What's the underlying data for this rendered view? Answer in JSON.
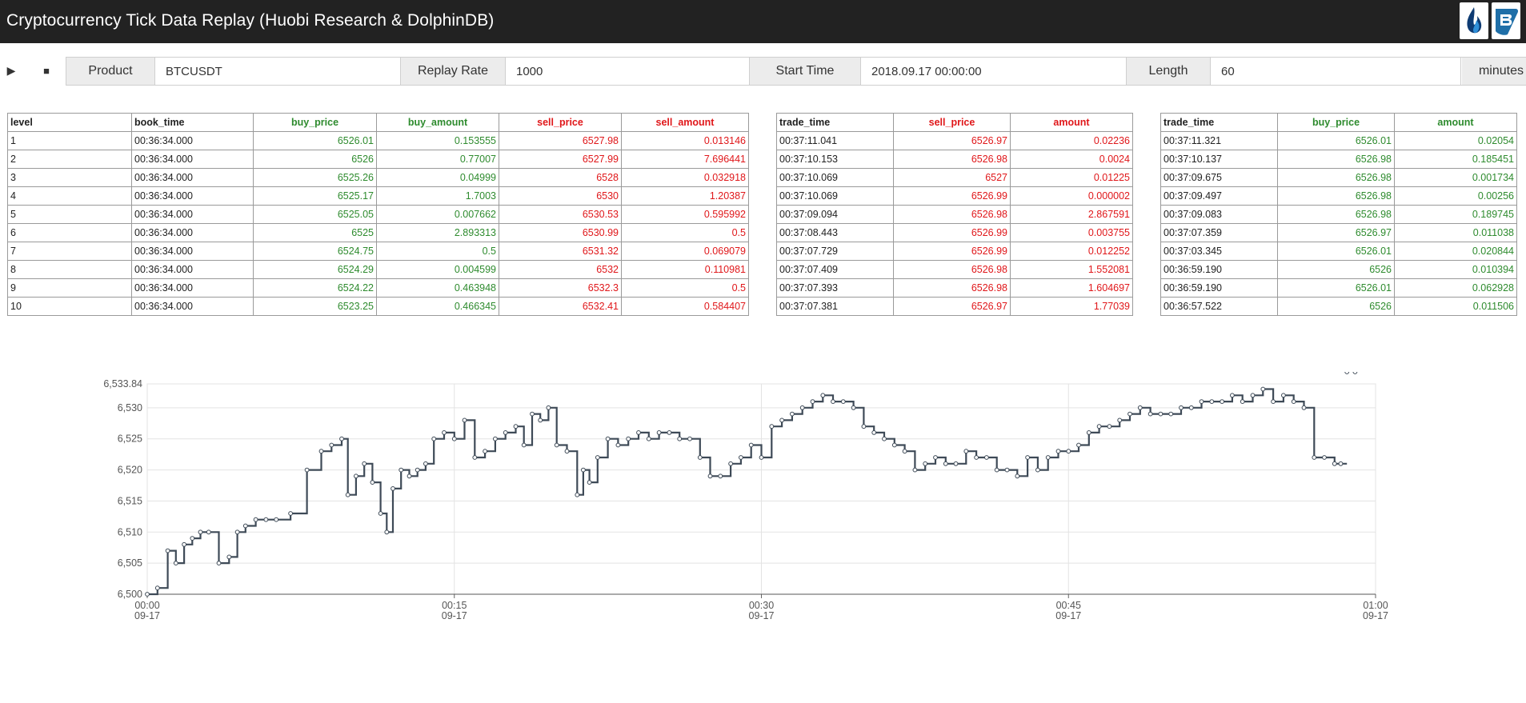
{
  "app": {
    "title": "Cryptocurrency Tick Data Replay (Huobi Research & DolphinDB)",
    "logos": [
      "huobi-flame-logo",
      "dolphindb-logo"
    ]
  },
  "controls": {
    "play_icon": "▶",
    "stop_icon": "■",
    "product_label": "Product",
    "product_value": "BTCUSDT",
    "rate_label": "Replay Rate",
    "rate_value": "1000",
    "start_label": "Start Time",
    "start_value": "2018.09.17 00:00:00",
    "length_label": "Length",
    "length_value": "60",
    "length_unit": "minutes"
  },
  "orderbook": {
    "headers": [
      "level",
      "book_time",
      "buy_price",
      "buy_amount",
      "sell_price",
      "sell_amount"
    ],
    "rows": [
      [
        "1",
        "00:36:34.000",
        "6526.01",
        "0.153555",
        "6527.98",
        "0.013146"
      ],
      [
        "2",
        "00:36:34.000",
        "6526",
        "0.77007",
        "6527.99",
        "7.696441"
      ],
      [
        "3",
        "00:36:34.000",
        "6525.26",
        "0.04999",
        "6528",
        "0.032918"
      ],
      [
        "4",
        "00:36:34.000",
        "6525.17",
        "1.7003",
        "6530",
        "1.20387"
      ],
      [
        "5",
        "00:36:34.000",
        "6525.05",
        "0.007662",
        "6530.53",
        "0.595992"
      ],
      [
        "6",
        "00:36:34.000",
        "6525",
        "2.893313",
        "6530.99",
        "0.5"
      ],
      [
        "7",
        "00:36:34.000",
        "6524.75",
        "0.5",
        "6531.32",
        "0.069079"
      ],
      [
        "8",
        "00:36:34.000",
        "6524.29",
        "0.004599",
        "6532",
        "0.110981"
      ],
      [
        "9",
        "00:36:34.000",
        "6524.22",
        "0.463948",
        "6532.3",
        "0.5"
      ],
      [
        "10",
        "00:36:34.000",
        "6523.25",
        "0.466345",
        "6532.41",
        "0.584407"
      ]
    ]
  },
  "sell_trades": {
    "headers": [
      "trade_time",
      "sell_price",
      "amount"
    ],
    "rows": [
      [
        "00:37:11.041",
        "6526.97",
        "0.02236"
      ],
      [
        "00:37:10.153",
        "6526.98",
        "0.0024"
      ],
      [
        "00:37:10.069",
        "6527",
        "0.01225"
      ],
      [
        "00:37:10.069",
        "6526.99",
        "0.000002"
      ],
      [
        "00:37:09.094",
        "6526.98",
        "2.867591"
      ],
      [
        "00:37:08.443",
        "6526.99",
        "0.003755"
      ],
      [
        "00:37:07.729",
        "6526.99",
        "0.012252"
      ],
      [
        "00:37:07.409",
        "6526.98",
        "1.552081"
      ],
      [
        "00:37:07.393",
        "6526.98",
        "1.604697"
      ],
      [
        "00:37:07.381",
        "6526.97",
        "1.77039"
      ]
    ]
  },
  "buy_trades": {
    "headers": [
      "trade_time",
      "buy_price",
      "amount"
    ],
    "rows": [
      [
        "00:37:11.321",
        "6526.01",
        "0.02054"
      ],
      [
        "00:37:10.137",
        "6526.98",
        "0.185451"
      ],
      [
        "00:37:09.675",
        "6526.98",
        "0.001734"
      ],
      [
        "00:37:09.497",
        "6526.98",
        "0.00256"
      ],
      [
        "00:37:09.083",
        "6526.98",
        "0.189745"
      ],
      [
        "00:37:07.359",
        "6526.97",
        "0.011038"
      ],
      [
        "00:37:03.345",
        "6526.01",
        "0.020844"
      ],
      [
        "00:36:59.190",
        "6526",
        "0.010394"
      ],
      [
        "00:36:59.190",
        "6526.01",
        "0.062928"
      ],
      [
        "00:36:57.522",
        "6526",
        "0.011506"
      ]
    ]
  },
  "colors": {
    "buy": "#2e8b2e",
    "sell": "#e0171a",
    "line": "#3e4a57",
    "titlebar": "#222222"
  },
  "chart_data": {
    "type": "line",
    "title": "",
    "xlabel": "",
    "ylabel": "",
    "ylim": [
      6500,
      6533.84
    ],
    "xlim": [
      "00:00",
      "01:00"
    ],
    "yticks": [
      "6,500",
      "6,505",
      "6,510",
      "6,515",
      "6,520",
      "6,525",
      "6,530",
      "6,533.84"
    ],
    "xticks": [
      {
        "time": "00:00",
        "date": "09-17"
      },
      {
        "time": "00:15",
        "date": "09-17"
      },
      {
        "time": "00:30",
        "date": "09-17"
      },
      {
        "time": "00:45",
        "date": "09-17"
      },
      {
        "time": "01:00",
        "date": "09-17"
      }
    ],
    "grid": true,
    "legend": "none",
    "x_minutes": [
      0,
      0.5,
      1,
      1.4,
      1.8,
      2.2,
      2.6,
      3,
      3.5,
      4,
      4.4,
      4.8,
      5.3,
      5.8,
      6.3,
      7,
      7.8,
      8.5,
      9,
      9.5,
      9.8,
      10.2,
      10.6,
      11,
      11.4,
      11.7,
      12,
      12.4,
      12.8,
      13.2,
      13.6,
      14,
      14.5,
      15,
      15.5,
      16,
      16.5,
      17,
      17.5,
      18,
      18.4,
      18.8,
      19.2,
      19.6,
      20,
      20.5,
      21,
      21.3,
      21.6,
      22,
      22.5,
      23,
      23.5,
      24,
      24.5,
      25,
      25.5,
      26,
      26.5,
      27,
      27.5,
      28,
      28.5,
      29,
      29.5,
      30,
      30.5,
      31,
      31.5,
      32,
      32.5,
      33,
      33.5,
      34,
      34.5,
      35,
      35.5,
      36,
      36.5,
      37,
      37.5,
      38,
      38.5,
      39,
      39.5,
      40,
      40.5,
      41,
      41.5,
      42,
      42.5,
      43,
      43.5,
      44,
      44.5,
      45,
      45.5,
      46,
      46.5,
      47,
      47.5,
      48,
      48.5,
      49,
      49.5,
      50,
      50.5,
      51,
      51.5,
      52,
      52.5,
      53,
      53.5,
      54,
      54.5,
      55,
      55.5,
      56,
      56.5,
      57,
      57.5,
      58,
      58.3,
      58.6,
      59
    ],
    "price": [
      6500,
      6501,
      6507,
      6505,
      6508,
      6509,
      6510,
      6510,
      6505,
      6506,
      6510,
      6511,
      6512,
      6512,
      6512,
      6513,
      6520,
      6523,
      6524,
      6525,
      6516,
      6519,
      6521,
      6518,
      6513,
      6510,
      6517,
      6520,
      6519,
      6520,
      6521,
      6525,
      6526,
      6525,
      6528,
      6522,
      6523,
      6525,
      6526,
      6527,
      6524,
      6529,
      6528,
      6530,
      6524,
      6523,
      6516,
      6520,
      6518,
      6522,
      6525,
      6524,
      6525,
      6526,
      6525,
      6526,
      6526,
      6525,
      6525,
      6522,
      6519,
      6519,
      6521,
      6522,
      6524,
      6522,
      6527,
      6528,
      6529,
      6530,
      6531,
      6532,
      6531,
      6531,
      6530,
      6527,
      6526,
      6525,
      6524,
      6523,
      6520,
      6521,
      6522,
      6521,
      6521,
      6523,
      6522,
      6522,
      6520,
      6520,
      6519,
      6522,
      6520,
      6522,
      6523,
      6523,
      6524,
      6526,
      6527,
      6527,
      6528,
      6529,
      6530,
      6529,
      6529,
      6529,
      6530,
      6530,
      6531,
      6531,
      6531,
      6532,
      6531,
      6532,
      6533,
      6531,
      6532,
      6531,
      6530,
      6522,
      6522,
      6521,
      6521
    ],
    "series": [
      {
        "name": "",
        "color": "#3e4a57"
      }
    ]
  }
}
